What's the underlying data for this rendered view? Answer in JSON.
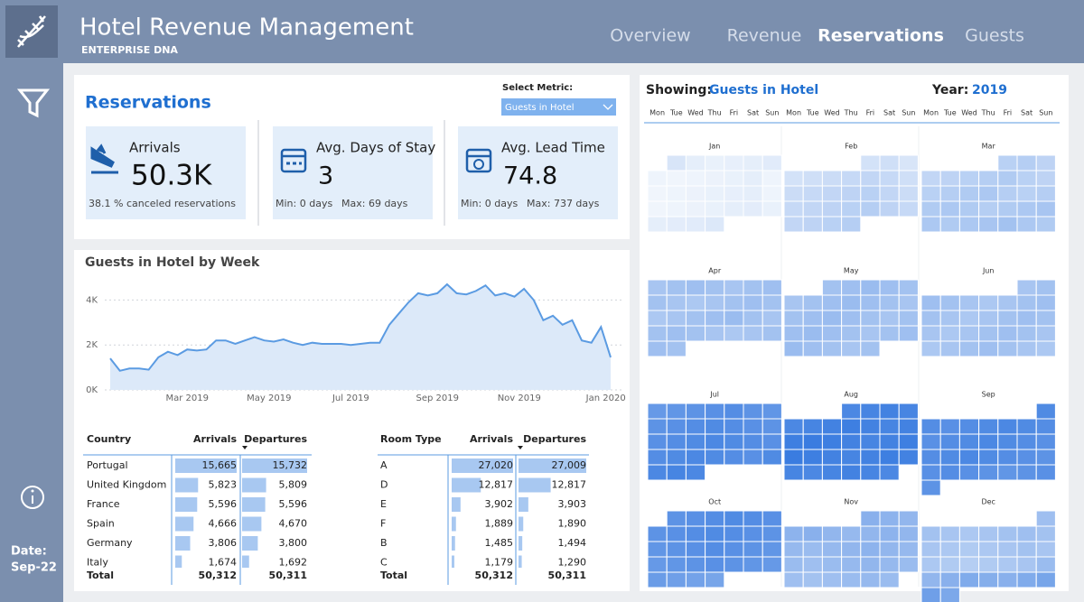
{
  "header": {
    "title": "Hotel Revenue Management",
    "subtitle": "ENTERPRISE DNA",
    "nav": [
      "Overview",
      "Revenue",
      "Reservations",
      "Guests"
    ],
    "active_nav": 2
  },
  "sidebar": {
    "date_label": "Date:",
    "date_value": "Sep-22"
  },
  "reservations": {
    "title": "Reservations",
    "metric_label": "Select Metric:",
    "metric_value": "Guests in Hotel",
    "kpis": [
      {
        "label": "Arrivals",
        "value": "50.3K",
        "footer": [
          "38.1 %  canceled reservations"
        ]
      },
      {
        "label": "Avg. Days of Stay",
        "value": "3",
        "footer": [
          "Min: 0 days",
          "Max: 69 days"
        ]
      },
      {
        "label": "Avg. Lead Time",
        "value": "74.8",
        "footer": [
          "Min: 0 days",
          "Max: 737 days"
        ]
      }
    ]
  },
  "chart_data": {
    "type": "line",
    "title": "Guests in Hotel by Week",
    "color": "#5b9be2",
    "grid": true,
    "x": [
      1,
      2,
      3,
      4,
      5,
      6,
      7,
      8,
      9,
      10,
      11,
      12,
      13,
      14,
      15,
      16,
      17,
      18,
      19,
      20,
      21,
      22,
      23,
      24,
      25,
      26,
      27,
      28,
      29,
      30,
      31,
      32,
      33,
      34,
      35,
      36,
      37,
      38,
      39,
      40,
      41,
      42,
      43,
      44,
      45,
      46,
      47,
      48,
      49,
      50,
      51,
      52,
      53
    ],
    "values": [
      1400,
      850,
      950,
      950,
      900,
      1450,
      1700,
      1550,
      1800,
      1750,
      1800,
      2200,
      2200,
      2050,
      2200,
      2350,
      2200,
      2150,
      2250,
      2100,
      2000,
      2100,
      2050,
      2050,
      2050,
      2000,
      2050,
      2100,
      2100,
      2900,
      3400,
      3900,
      4300,
      4200,
      4300,
      4700,
      4300,
      4250,
      4400,
      4650,
      4200,
      4300,
      4150,
      4500,
      4000,
      3100,
      3300,
      2900,
      3100,
      2200,
      2100,
      2800,
      1450
    ],
    "xlim": [
      1,
      53
    ],
    "xticks": [
      {
        "value": 9,
        "label": "Mar 2019"
      },
      {
        "value": 17.5,
        "label": "May 2019"
      },
      {
        "value": 26,
        "label": "Jul 2019"
      },
      {
        "value": 35,
        "label": "Sep 2019"
      },
      {
        "value": 43.5,
        "label": "Nov 2019"
      },
      {
        "value": 52.5,
        "label": "Jan 2020"
      }
    ],
    "ylim": [
      0,
      4900
    ],
    "yticks": [
      {
        "value": 0,
        "label": "0K"
      },
      {
        "value": 2000,
        "label": "2K"
      },
      {
        "value": 4000,
        "label": "4K"
      }
    ]
  },
  "tables": [
    {
      "columns": [
        "Country",
        "Arrivals",
        "Departures"
      ],
      "rows": [
        {
          "name": "Portugal",
          "values": [
            15665,
            15732
          ],
          "labels": [
            "15,665",
            "15,732"
          ]
        },
        {
          "name": "United Kingdom",
          "values": [
            5823,
            5809
          ],
          "labels": [
            "5,823",
            "5,809"
          ]
        },
        {
          "name": "France",
          "values": [
            5596,
            5596
          ],
          "labels": [
            "5,596",
            "5,596"
          ]
        },
        {
          "name": "Spain",
          "values": [
            4666,
            4670
          ],
          "labels": [
            "4,666",
            "4,670"
          ]
        },
        {
          "name": "Germany",
          "values": [
            3806,
            3800
          ],
          "labels": [
            "3,806",
            "3,800"
          ]
        },
        {
          "name": "Italy",
          "values": [
            1674,
            1692
          ],
          "labels": [
            "1,674",
            "1,692"
          ]
        }
      ],
      "total": {
        "name": "Total",
        "labels": [
          "50,312",
          "50,311"
        ]
      }
    },
    {
      "columns": [
        "Room Type",
        "Arrivals",
        "Departures"
      ],
      "rows": [
        {
          "name": "A",
          "values": [
            27020,
            27009
          ],
          "labels": [
            "27,020",
            "27,009"
          ]
        },
        {
          "name": "D",
          "values": [
            12817,
            12817
          ],
          "labels": [
            "12,817",
            "12,817"
          ]
        },
        {
          "name": "E",
          "values": [
            3902,
            3903
          ],
          "labels": [
            "3,902",
            "3,903"
          ]
        },
        {
          "name": "F",
          "values": [
            1889,
            1890
          ],
          "labels": [
            "1,889",
            "1,890"
          ]
        },
        {
          "name": "B",
          "values": [
            1485,
            1494
          ],
          "labels": [
            "1,485",
            "1,494"
          ]
        },
        {
          "name": "C",
          "values": [
            1179,
            1290
          ],
          "labels": [
            "1,179",
            "1,290"
          ]
        }
      ],
      "total": {
        "name": "Total",
        "labels": [
          "50,312",
          "50,311"
        ]
      }
    }
  ],
  "calendar": {
    "showing_label": "Showing:",
    "metric": "Guests in Hotel",
    "year_label": "Year:",
    "year": 2019,
    "color": "#3a7ce0",
    "weekdays": [
      "Mon",
      "Tue",
      "Wed",
      "Thu",
      "Fri",
      "Sat",
      "Sun"
    ],
    "months": [
      {
        "name": "Jan",
        "values": [
          1200,
          900,
          800,
          850,
          900,
          1000,
          700,
          650,
          700,
          750,
          800,
          900,
          700,
          650,
          700,
          750,
          800,
          850,
          900,
          700,
          650,
          700,
          750,
          800,
          900,
          950,
          800,
          900,
          950,
          1000,
          1100
        ]
      },
      {
        "name": "Feb",
        "values": [
          1300,
          1400,
          1200,
          1300,
          1400,
          1500,
          1600,
          1700,
          1600,
          1400,
          1500,
          1600,
          1700,
          1800,
          1900,
          1700,
          1500,
          1600,
          1700,
          1800,
          1900,
          2000,
          1800,
          1600,
          1700,
          1800,
          1900,
          2000
        ]
      },
      {
        "name": "Mar",
        "values": [
          1900,
          2000,
          1800,
          1700,
          1800,
          1900,
          2000,
          2100,
          1900,
          1800,
          1900,
          2000,
          2100,
          2200,
          2000,
          1900,
          2000,
          2100,
          2200,
          2100,
          2000,
          2100,
          2200,
          2300,
          2200,
          2100,
          2200,
          2300,
          2400,
          2200,
          2100
        ]
      },
      {
        "name": "Apr",
        "values": [
          2300,
          2400,
          2500,
          2400,
          2300,
          2400,
          2500,
          2400,
          2300,
          2200,
          2300,
          2400,
          2500,
          2400,
          2200,
          2300,
          2400,
          2500,
          2600,
          2400,
          2300,
          2400,
          2500,
          2400,
          2300,
          2200,
          2300,
          2400,
          2500,
          2400
        ]
      },
      {
        "name": "May",
        "values": [
          2400,
          2500,
          2600,
          2500,
          2400,
          2300,
          2400,
          2500,
          2600,
          2500,
          2400,
          2300,
          2400,
          2500,
          2600,
          2500,
          2400,
          2300,
          2400,
          2500,
          2600,
          2500,
          2400,
          2300,
          2400,
          2500,
          2600,
          2500,
          2400,
          2300,
          2400
        ]
      },
      {
        "name": "Jun",
        "values": [
          2300,
          2400,
          2500,
          2400,
          2300,
          2200,
          2300,
          2400,
          2500,
          2400,
          2300,
          2200,
          2300,
          2400,
          2500,
          2400,
          2300,
          2200,
          2300,
          2400,
          2500,
          2400,
          2300,
          2200,
          2300,
          2400,
          2500,
          2400,
          2300,
          2200
        ]
      },
      {
        "name": "Jul",
        "values": [
          3800,
          3900,
          4000,
          4100,
          4200,
          4000,
          3900,
          4000,
          4100,
          4200,
          4300,
          4200,
          4100,
          4000,
          4100,
          4200,
          4300,
          4400,
          4300,
          4200,
          4100,
          4200,
          4300,
          4400,
          4300,
          4200,
          4100,
          4300,
          4400,
          4500,
          4400
        ]
      },
      {
        "name": "Aug",
        "values": [
          4400,
          4500,
          4600,
          4500,
          4400,
          4500,
          4600,
          4700,
          4600,
          4500,
          4600,
          4700,
          4800,
          4700,
          4600,
          4500,
          4600,
          4700,
          4800,
          4700,
          4600,
          4500,
          4600,
          4700,
          4600,
          4500,
          4400,
          4500,
          4600,
          4500,
          4400
        ]
      },
      {
        "name": "Sep",
        "values": [
          4300,
          4200,
          4100,
          4200,
          4300,
          4400,
          4300,
          4200,
          4100,
          4200,
          4300,
          4400,
          4300,
          4200,
          4100,
          4200,
          4300,
          4400,
          4300,
          4200,
          4100,
          4000,
          4100,
          4200,
          4100,
          4000,
          3900,
          4000,
          4100,
          4000
        ]
      },
      {
        "name": "Oct",
        "values": [
          4000,
          4100,
          4200,
          4300,
          4200,
          4100,
          4000,
          4100,
          4200,
          4300,
          4200,
          4100,
          4000,
          3900,
          4000,
          4100,
          4200,
          4100,
          4000,
          3900,
          3800,
          3900,
          4000,
          4100,
          4000,
          3900,
          3800,
          3700,
          3600,
          3500,
          3400
        ]
      },
      {
        "name": "Nov",
        "values": [
          3000,
          2900,
          2800,
          2900,
          3000,
          2800,
          2700,
          2800,
          2900,
          2800,
          2700,
          2600,
          2700,
          2800,
          2900,
          2800,
          2700,
          2600,
          2500,
          2600,
          2700,
          2800,
          2700,
          2600,
          2500,
          2400,
          2500,
          2600,
          2700,
          2600
        ]
      },
      {
        "name": "Dec",
        "values": [
          2500,
          2400,
          2300,
          2200,
          2300,
          2400,
          2500,
          2400,
          2300,
          2200,
          2100,
          2200,
          2300,
          2400,
          2300,
          2200,
          2100,
          2000,
          2100,
          2200,
          2300,
          2600,
          2800,
          3000,
          3200,
          3100,
          3000,
          3200,
          3400,
          3600,
          3300
        ]
      }
    ]
  }
}
